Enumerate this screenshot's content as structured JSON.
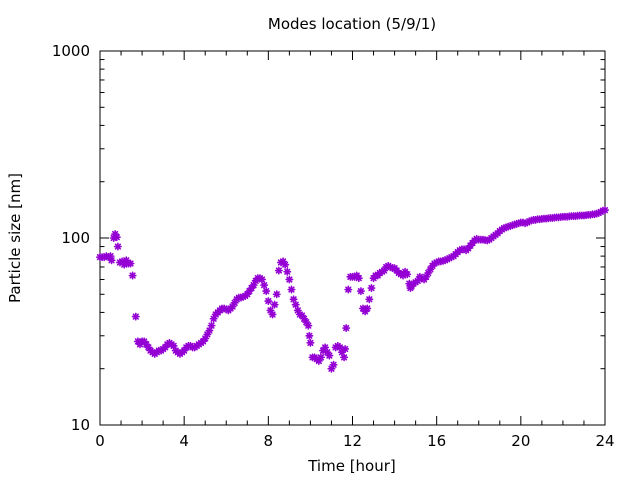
{
  "chart_data": {
    "type": "scatter",
    "title": "Modes location (5/9/1)",
    "xlabel": "Time [hour]",
    "ylabel": "Particle size [nm]",
    "xlim": [
      0,
      24
    ],
    "ylim": [
      10,
      1000
    ],
    "yscale": "log",
    "xticks": [
      0,
      4,
      8,
      12,
      16,
      20,
      24
    ],
    "xtick_labels": [
      "0",
      "4",
      "8",
      "12",
      "16",
      "20",
      "24"
    ],
    "yticks": [
      10,
      100,
      1000
    ],
    "ytick_labels": [
      "10",
      "100",
      "1000"
    ],
    "grid": false,
    "legend": "none",
    "series": [
      {
        "color": "#9400D3",
        "marker": "asterisk",
        "points": [
          [
            0.0,
            79
          ],
          [
            0.1,
            79
          ],
          [
            0.2,
            79
          ],
          [
            0.3,
            80
          ],
          [
            0.4,
            79
          ],
          [
            0.5,
            80
          ],
          [
            0.55,
            76
          ],
          [
            0.65,
            100
          ],
          [
            0.72,
            105
          ],
          [
            0.8,
            101
          ],
          [
            0.85,
            90
          ],
          [
            0.95,
            74
          ],
          [
            1.05,
            75
          ],
          [
            1.15,
            72
          ],
          [
            1.25,
            76
          ],
          [
            1.35,
            73
          ],
          [
            1.45,
            73
          ],
          [
            1.55,
            63
          ],
          [
            1.7,
            38
          ],
          [
            1.8,
            28
          ],
          [
            1.9,
            27
          ],
          [
            2.0,
            28
          ],
          [
            2.1,
            28
          ],
          [
            2.2,
            27
          ],
          [
            2.3,
            26
          ],
          [
            2.4,
            25
          ],
          [
            2.5,
            24.5
          ],
          [
            2.6,
            24
          ],
          [
            2.7,
            24.5
          ],
          [
            2.8,
            25
          ],
          [
            2.9,
            25
          ],
          [
            3.0,
            25.5
          ],
          [
            3.1,
            26
          ],
          [
            3.2,
            27
          ],
          [
            3.3,
            27.5
          ],
          [
            3.4,
            27
          ],
          [
            3.5,
            26.5
          ],
          [
            3.6,
            25
          ],
          [
            3.7,
            24.5
          ],
          [
            3.8,
            24
          ],
          [
            3.9,
            24.5
          ],
          [
            4.0,
            25
          ],
          [
            4.1,
            26
          ],
          [
            4.2,
            26.5
          ],
          [
            4.3,
            26.5
          ],
          [
            4.4,
            26
          ],
          [
            4.5,
            26
          ],
          [
            4.6,
            26.5
          ],
          [
            4.7,
            27
          ],
          [
            4.8,
            27.5
          ],
          [
            4.9,
            28
          ],
          [
            5.0,
            29
          ],
          [
            5.1,
            30.5
          ],
          [
            5.2,
            32
          ],
          [
            5.3,
            34
          ],
          [
            5.4,
            37
          ],
          [
            5.5,
            39
          ],
          [
            5.6,
            40
          ],
          [
            5.7,
            41
          ],
          [
            5.8,
            42
          ],
          [
            5.9,
            42
          ],
          [
            6.0,
            41.5
          ],
          [
            6.1,
            41
          ],
          [
            6.2,
            42
          ],
          [
            6.3,
            43
          ],
          [
            6.4,
            45
          ],
          [
            6.5,
            47
          ],
          [
            6.6,
            48
          ],
          [
            6.7,
            48
          ],
          [
            6.8,
            48.5
          ],
          [
            6.9,
            49
          ],
          [
            7.0,
            50
          ],
          [
            7.1,
            52
          ],
          [
            7.2,
            54
          ],
          [
            7.3,
            56
          ],
          [
            7.4,
            59
          ],
          [
            7.5,
            61
          ],
          [
            7.6,
            61
          ],
          [
            7.7,
            60
          ],
          [
            7.8,
            56
          ],
          [
            7.9,
            52
          ],
          [
            8.0,
            46
          ],
          [
            8.1,
            41
          ],
          [
            8.2,
            39
          ],
          [
            8.3,
            44
          ],
          [
            8.4,
            50
          ],
          [
            8.5,
            67
          ],
          [
            8.6,
            74
          ],
          [
            8.7,
            75
          ],
          [
            8.8,
            72
          ],
          [
            8.9,
            66
          ],
          [
            9.0,
            60
          ],
          [
            9.1,
            53
          ],
          [
            9.2,
            47
          ],
          [
            9.3,
            44
          ],
          [
            9.4,
            41
          ],
          [
            9.5,
            39
          ],
          [
            9.6,
            38.5
          ],
          [
            9.7,
            37
          ],
          [
            9.8,
            35.5
          ],
          [
            9.9,
            34
          ],
          [
            9.95,
            30
          ],
          [
            10.0,
            27.5
          ],
          [
            10.1,
            23
          ],
          [
            10.2,
            23
          ],
          [
            10.3,
            22.5
          ],
          [
            10.4,
            22
          ],
          [
            10.5,
            23
          ],
          [
            10.6,
            25
          ],
          [
            10.7,
            26
          ],
          [
            10.8,
            24.5
          ],
          [
            10.9,
            23.5
          ],
          [
            11.0,
            20
          ],
          [
            11.1,
            21
          ],
          [
            11.2,
            26
          ],
          [
            11.3,
            26.5
          ],
          [
            11.4,
            26
          ],
          [
            11.5,
            24.5
          ],
          [
            11.6,
            23
          ],
          [
            11.65,
            25.5
          ],
          [
            11.7,
            33
          ],
          [
            11.8,
            53
          ],
          [
            11.9,
            62
          ],
          [
            12.0,
            62
          ],
          [
            12.1,
            62
          ],
          [
            12.2,
            63
          ],
          [
            12.3,
            61
          ],
          [
            12.4,
            52
          ],
          [
            12.5,
            42
          ],
          [
            12.6,
            40.5
          ],
          [
            12.7,
            42
          ],
          [
            12.8,
            47
          ],
          [
            12.9,
            54
          ],
          [
            13.0,
            61
          ],
          [
            13.1,
            63
          ],
          [
            13.2,
            63
          ],
          [
            13.3,
            65
          ],
          [
            13.4,
            66
          ],
          [
            13.5,
            67
          ],
          [
            13.6,
            70
          ],
          [
            13.7,
            71
          ],
          [
            13.8,
            70
          ],
          [
            13.9,
            69
          ],
          [
            14.0,
            69
          ],
          [
            14.1,
            67
          ],
          [
            14.2,
            65
          ],
          [
            14.3,
            64
          ],
          [
            14.4,
            63
          ],
          [
            14.5,
            66
          ],
          [
            14.6,
            64
          ],
          [
            14.7,
            57
          ],
          [
            14.75,
            54
          ],
          [
            14.8,
            55
          ],
          [
            14.9,
            57
          ],
          [
            15.0,
            58
          ],
          [
            15.1,
            59
          ],
          [
            15.2,
            62
          ],
          [
            15.3,
            61
          ],
          [
            15.4,
            60
          ],
          [
            15.5,
            62
          ],
          [
            15.6,
            65
          ],
          [
            15.7,
            68
          ],
          [
            15.8,
            71
          ],
          [
            15.9,
            73
          ],
          [
            16.0,
            74
          ],
          [
            16.1,
            75
          ],
          [
            16.2,
            75
          ],
          [
            16.3,
            75.5
          ],
          [
            16.4,
            76
          ],
          [
            16.5,
            77
          ],
          [
            16.6,
            78
          ],
          [
            16.7,
            79
          ],
          [
            16.8,
            80
          ],
          [
            16.9,
            82
          ],
          [
            17.0,
            84
          ],
          [
            17.1,
            86
          ],
          [
            17.2,
            87
          ],
          [
            17.3,
            87
          ],
          [
            17.4,
            86
          ],
          [
            17.5,
            88
          ],
          [
            17.6,
            91
          ],
          [
            17.7,
            94
          ],
          [
            17.8,
            97
          ],
          [
            17.9,
            99
          ],
          [
            18.0,
            98
          ],
          [
            18.1,
            98
          ],
          [
            18.2,
            98
          ],
          [
            18.3,
            97.5
          ],
          [
            18.4,
            97
          ],
          [
            18.5,
            98
          ],
          [
            18.6,
            100
          ],
          [
            18.7,
            102
          ],
          [
            18.8,
            104
          ],
          [
            18.9,
            106
          ],
          [
            19.0,
            109
          ],
          [
            19.1,
            111
          ],
          [
            19.2,
            113
          ],
          [
            19.3,
            114
          ],
          [
            19.4,
            115
          ],
          [
            19.5,
            116
          ],
          [
            19.6,
            117
          ],
          [
            19.7,
            118
          ],
          [
            19.8,
            119
          ],
          [
            19.9,
            120
          ],
          [
            20.0,
            121
          ],
          [
            20.1,
            121
          ],
          [
            20.2,
            120
          ],
          [
            20.3,
            121
          ],
          [
            20.4,
            123
          ],
          [
            20.5,
            124
          ],
          [
            20.6,
            125
          ],
          [
            20.7,
            125
          ],
          [
            20.8,
            126
          ],
          [
            20.9,
            126
          ],
          [
            21.0,
            126.5
          ],
          [
            21.1,
            127
          ],
          [
            21.2,
            127
          ],
          [
            21.3,
            127.5
          ],
          [
            21.4,
            128
          ],
          [
            21.5,
            128
          ],
          [
            21.6,
            128.5
          ],
          [
            21.7,
            129
          ],
          [
            21.8,
            129
          ],
          [
            21.9,
            129.5
          ],
          [
            22.0,
            130
          ],
          [
            22.1,
            130
          ],
          [
            22.2,
            130
          ],
          [
            22.3,
            130.5
          ],
          [
            22.4,
            131
          ],
          [
            22.5,
            131
          ],
          [
            22.6,
            131
          ],
          [
            22.7,
            131.5
          ],
          [
            22.8,
            132
          ],
          [
            22.9,
            132
          ],
          [
            23.0,
            132
          ],
          [
            23.1,
            132.5
          ],
          [
            23.2,
            133
          ],
          [
            23.3,
            133
          ],
          [
            23.4,
            134
          ],
          [
            23.5,
            134
          ],
          [
            23.6,
            135
          ],
          [
            23.7,
            136
          ],
          [
            23.8,
            138
          ],
          [
            23.9,
            140
          ],
          [
            24.0,
            141
          ]
        ]
      }
    ]
  }
}
